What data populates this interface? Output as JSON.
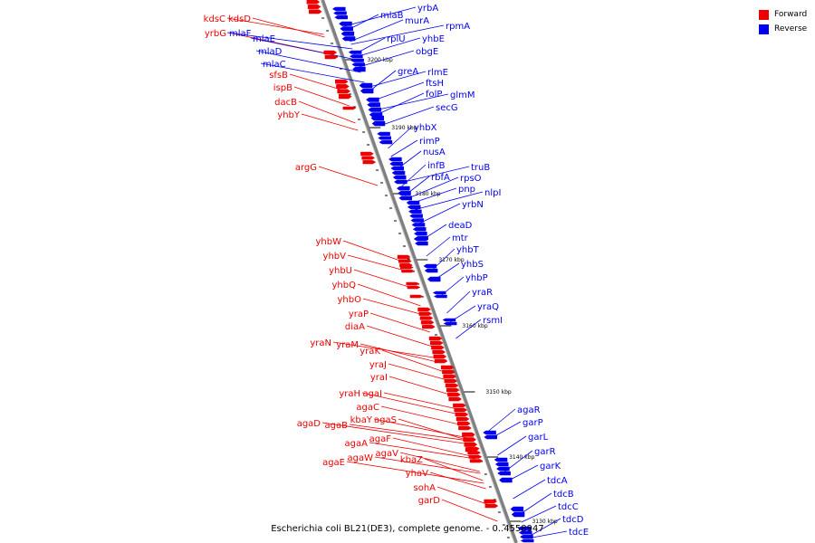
{
  "legend": {
    "forward_label": "Forward",
    "reverse_label": "Reverse",
    "forward_color": "#ee0000",
    "reverse_color": "#0000ee"
  },
  "caption": "Escherichia coli BL21(DE3), complete genome. - 0..4558947",
  "colors": {
    "forward": "#ee0000",
    "reverse": "#0000ee",
    "axis": "#808080"
  },
  "ruler": [
    "3200 kbp",
    "3190 kbp",
    "3180 kbp",
    "3170 kbp",
    "3160 kbp",
    "3150 kbp",
    "3140 kbp",
    "3130 kbp"
  ],
  "forward_genes": [
    "kdsC",
    "kdsD",
    "yrbG",
    "sfsB",
    "ispB",
    "dacB",
    "yhbY",
    "argG",
    "yhbW",
    "yhbV",
    "yhbU",
    "yhbQ",
    "yhbO",
    "yraP",
    "diaA",
    "yraN",
    "yraM",
    "yraK",
    "yraJ",
    "yraI",
    "yraH",
    "agaI",
    "agaC",
    "agaD",
    "agaB",
    "kbaY",
    "agaS",
    "agaA",
    "agaF",
    "agaE",
    "agaW",
    "agaV",
    "kbaZ",
    "yhaV",
    "sohA",
    "garD"
  ],
  "reverse_genes": [
    "mlaB",
    "yrbA",
    "murA",
    "mlaF",
    "rpmA",
    "mlaE",
    "rplU",
    "yhbE",
    "mlaD",
    "obgE",
    "mlaC",
    "greA",
    "rlmE",
    "ftsH",
    "folP",
    "glmM",
    "secG",
    "yhbX",
    "rimP",
    "nusA",
    "infB",
    "truB",
    "rbfA",
    "rpsO",
    "pnp",
    "nlpI",
    "yrbN",
    "deaD",
    "mtr",
    "yhbT",
    "yhbS",
    "yhbP",
    "yraR",
    "yraQ",
    "rsmI",
    "agaR",
    "garP",
    "garL",
    "garR",
    "garK",
    "tdcA",
    "tdcB",
    "tdcC",
    "tdcD",
    "tdcE"
  ]
}
